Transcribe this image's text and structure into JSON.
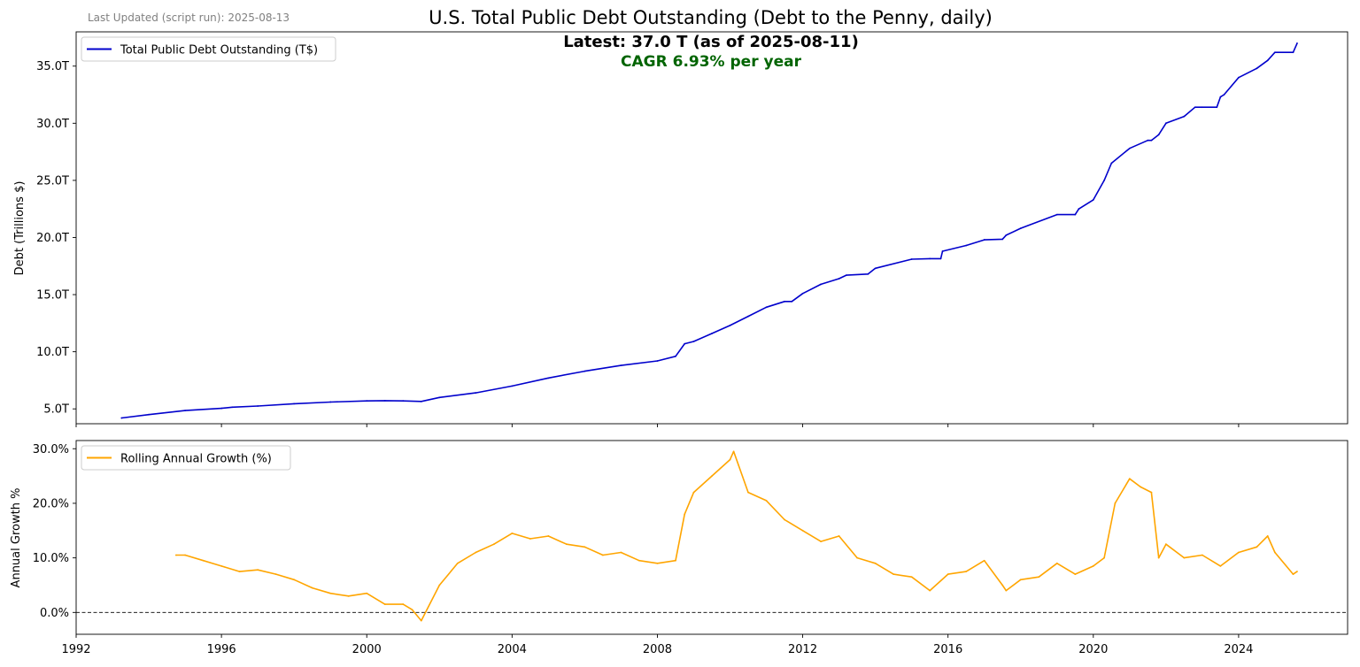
{
  "header": {
    "updated": "Last Updated (script run): 2025-08-13",
    "title": "U.S. Total Public Debt Outstanding (Debt to the Penny, daily)",
    "latest": "Latest: 37.0 T (as of 2025-08-11)",
    "cagr": "CAGR 6.93% per year"
  },
  "colors": {
    "debt": "#0000cc",
    "growth": "#ffa500",
    "cagr": "#006400"
  },
  "chart_data": [
    {
      "type": "line",
      "title": "U.S. Total Public Debt Outstanding (Debt to the Penny, daily)",
      "xlabel": "",
      "ylabel": "Debt (Trillions $)",
      "xlim": [
        1992.0,
        2027.0
      ],
      "ylim": [
        3.7,
        38.0
      ],
      "xticks": [
        1992,
        1996,
        2000,
        2004,
        2008,
        2012,
        2016,
        2020,
        2024
      ],
      "yticks": [
        5,
        10,
        15,
        20,
        25,
        30,
        35
      ],
      "ytick_labels": [
        "5.0T",
        "10.0T",
        "15.0T",
        "20.0T",
        "25.0T",
        "30.0T",
        "35.0T"
      ],
      "legend": "top-left",
      "series": [
        {
          "name": "Total Public Debt Outstanding (T$)",
          "color": "#0000cc",
          "x": [
            1993.25,
            1994.0,
            1995.0,
            1996.0,
            1996.3,
            1997.0,
            1998.0,
            1999.0,
            2000.0,
            2000.5,
            2001.0,
            2001.5,
            2002.0,
            2003.0,
            2004.0,
            2005.0,
            2006.0,
            2007.0,
            2008.0,
            2008.5,
            2008.75,
            2009.0,
            2009.5,
            2010.0,
            2010.5,
            2011.0,
            2011.5,
            2011.7,
            2012.0,
            2012.5,
            2013.0,
            2013.2,
            2013.8,
            2014.0,
            2015.0,
            2015.5,
            2015.8,
            2015.85,
            2016.5,
            2017.0,
            2017.5,
            2017.6,
            2018.0,
            2019.0,
            2019.5,
            2019.6,
            2020.0,
            2020.3,
            2020.5,
            2021.0,
            2021.5,
            2021.6,
            2021.8,
            2022.0,
            2022.5,
            2022.8,
            2023.0,
            2023.4,
            2023.5,
            2023.6,
            2024.0,
            2024.5,
            2024.8,
            2025.0,
            2025.5,
            2025.61
          ],
          "values": [
            4.2,
            4.5,
            4.85,
            5.05,
            5.15,
            5.25,
            5.45,
            5.6,
            5.7,
            5.72,
            5.7,
            5.65,
            6.0,
            6.4,
            7.0,
            7.7,
            8.3,
            8.8,
            9.2,
            9.6,
            10.7,
            10.9,
            11.6,
            12.3,
            13.1,
            13.9,
            14.4,
            14.4,
            15.1,
            15.9,
            16.4,
            16.7,
            16.8,
            17.3,
            18.1,
            18.15,
            18.15,
            18.8,
            19.3,
            19.8,
            19.85,
            20.2,
            20.8,
            22.0,
            22.0,
            22.5,
            23.3,
            25.0,
            26.5,
            27.8,
            28.5,
            28.5,
            29.0,
            30.0,
            30.6,
            31.4,
            31.4,
            31.4,
            32.3,
            32.5,
            34.0,
            34.8,
            35.5,
            36.2,
            36.2,
            37.0
          ]
        }
      ]
    },
    {
      "type": "line",
      "title": "",
      "xlabel": "",
      "ylabel": "Annual Growth %",
      "xlim": [
        1992.0,
        2027.0
      ],
      "ylim": [
        -4.0,
        31.5
      ],
      "xticks": [
        1992,
        1996,
        2000,
        2004,
        2008,
        2012,
        2016,
        2020,
        2024
      ],
      "yticks": [
        0,
        10,
        20,
        30
      ],
      "ytick_labels": [
        "0.0%",
        "10.0%",
        "20.0%",
        "30.0%"
      ],
      "reference_line": {
        "y": 0,
        "style": "dashed"
      },
      "legend": "top-left",
      "series": [
        {
          "name": "Rolling Annual Growth (%)",
          "color": "#ffa500",
          "x": [
            1994.75,
            1995.0,
            1995.5,
            1996.0,
            1996.5,
            1997.0,
            1997.5,
            1998.0,
            1998.5,
            1999.0,
            1999.5,
            2000.0,
            2000.5,
            2001.0,
            2001.25,
            2001.5,
            2002.0,
            2002.5,
            2003.0,
            2003.5,
            2004.0,
            2004.5,
            2005.0,
            2005.5,
            2006.0,
            2006.5,
            2007.0,
            2007.5,
            2008.0,
            2008.5,
            2008.75,
            2009.0,
            2009.5,
            2010.0,
            2010.1,
            2010.5,
            2011.0,
            2011.5,
            2012.0,
            2012.5,
            2013.0,
            2013.5,
            2014.0,
            2014.5,
            2015.0,
            2015.5,
            2016.0,
            2016.5,
            2017.0,
            2017.5,
            2017.6,
            2018.0,
            2018.5,
            2019.0,
            2019.5,
            2020.0,
            2020.3,
            2020.6,
            2021.0,
            2021.3,
            2021.6,
            2021.8,
            2022.0,
            2022.5,
            2023.0,
            2023.5,
            2024.0,
            2024.5,
            2024.8,
            2025.0,
            2025.5,
            2025.61
          ],
          "values": [
            10.5,
            10.5,
            9.5,
            8.5,
            7.5,
            7.8,
            7.0,
            6.0,
            4.5,
            3.5,
            3.0,
            3.5,
            1.5,
            1.5,
            0.5,
            -1.5,
            5.0,
            9.0,
            11.0,
            12.5,
            14.5,
            13.5,
            14.0,
            12.5,
            12.0,
            10.5,
            11.0,
            9.5,
            9.0,
            9.5,
            18.0,
            22.0,
            25.0,
            28.0,
            29.5,
            22.0,
            20.5,
            17.0,
            15.0,
            13.0,
            14.0,
            10.0,
            9.0,
            7.0,
            6.5,
            4.0,
            7.0,
            7.5,
            9.5,
            5.0,
            4.0,
            6.0,
            6.5,
            9.0,
            7.0,
            8.5,
            10.0,
            20.0,
            24.5,
            23.0,
            22.0,
            10.0,
            12.5,
            10.0,
            10.5,
            8.5,
            11.0,
            12.0,
            14.0,
            11.0,
            7.0,
            7.5
          ]
        }
      ]
    }
  ]
}
